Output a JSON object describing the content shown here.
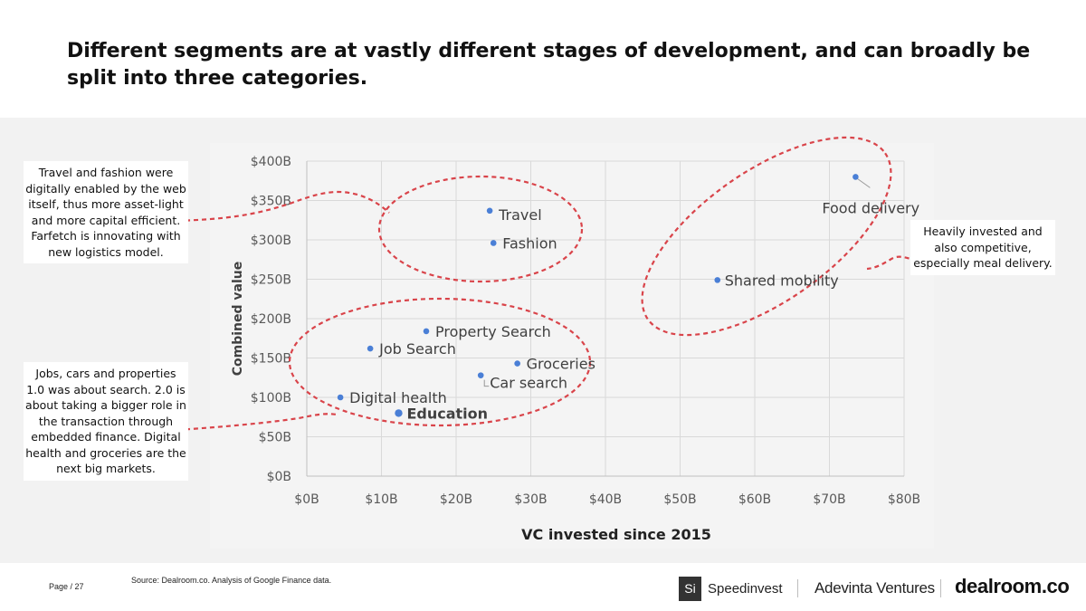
{
  "page": {
    "title": "Different segments are at vastly different stages of development, and can broadly be split into three categories.",
    "page_label": "Page / 27",
    "source": "Source: Dealroom.co. Analysis of Google Finance data."
  },
  "annotations": {
    "top_left": "Travel and fashion were digitally enabled by the web itself, thus more asset-light and more capital efficient. Farfetch is innovating with new logistics model.",
    "bottom_left": "Jobs, cars and properties 1.0 was about search. 2.0 is about taking a bigger role in the transaction through embedded finance. Digital health and groceries are the next big markets.",
    "right": "Heavily invested and also competitive, especially meal delivery."
  },
  "logos": {
    "si_mark": "Si",
    "speedinvest": "Speedinvest",
    "adevinta": "Adevinta Ventures",
    "dealroom": "dealroom.co"
  },
  "colors": {
    "point": "#4a7fd6",
    "grid": "#d9d9d9",
    "ellipse": "#d9444a",
    "axis_text": "#595959"
  },
  "chart_data": {
    "type": "scatter",
    "title": "",
    "xlabel": "VC invested since 2015",
    "ylabel": "Combined value",
    "xlim": [
      0,
      80
    ],
    "ylim": [
      0,
      400
    ],
    "x_ticks": [
      0,
      10,
      20,
      30,
      40,
      50,
      60,
      70,
      80
    ],
    "y_ticks": [
      0,
      50,
      100,
      150,
      200,
      250,
      300,
      350,
      400
    ],
    "x_tick_labels": [
      "$0B",
      "$10B",
      "$20B",
      "$30B",
      "$40B",
      "$50B",
      "$60B",
      "$70B",
      "$80B"
    ],
    "y_tick_labels": [
      "$0B",
      "$50B",
      "$100B",
      "$150B",
      "$200B",
      "$250B",
      "$300B",
      "$350B",
      "$400B"
    ],
    "grid": true,
    "points": [
      {
        "label": "Food delivery",
        "x": 73.5,
        "y": 380
      },
      {
        "label": "Travel",
        "x": 24.5,
        "y": 337
      },
      {
        "label": "Fashion",
        "x": 25,
        "y": 296
      },
      {
        "label": "Shared mobility",
        "x": 55,
        "y": 249
      },
      {
        "label": "Property Search",
        "x": 16,
        "y": 184
      },
      {
        "label": "Job Search",
        "x": 8.5,
        "y": 162
      },
      {
        "label": "Groceries",
        "x": 28.2,
        "y": 143
      },
      {
        "label": "Car search",
        "x": 23.3,
        "y": 128
      },
      {
        "label": "Digital health",
        "x": 4.5,
        "y": 100
      },
      {
        "label": "Education",
        "x": 12.3,
        "y": 80
      }
    ]
  }
}
